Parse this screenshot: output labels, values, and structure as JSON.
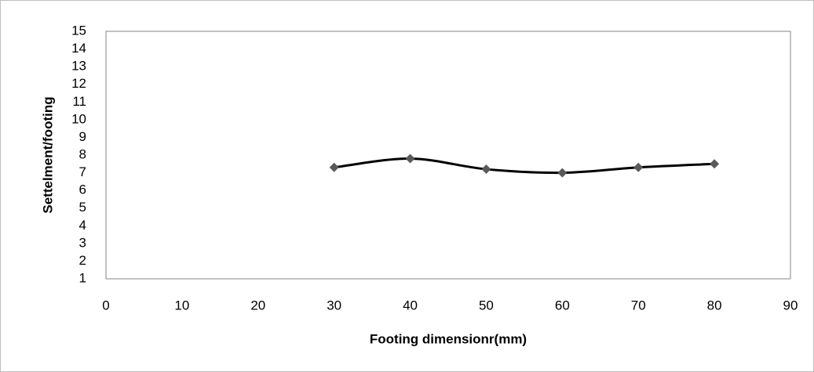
{
  "chart_data": {
    "type": "line",
    "x_label": "Footing dimensionr(mm)",
    "y_label": "Settelment/footing",
    "x": [
      30,
      40,
      50,
      60,
      70,
      80
    ],
    "series": [
      {
        "color": "#000000",
        "marker_color": "#595959",
        "values": [
          7.3,
          7.8,
          7.2,
          7.0,
          7.3,
          7.5
        ]
      }
    ],
    "xlim": [
      0,
      90
    ],
    "xticks": [
      0,
      10,
      20,
      30,
      40,
      50,
      60,
      70,
      80,
      90
    ],
    "ylim": [
      1,
      15
    ],
    "yticks": [
      1,
      2,
      3,
      4,
      5,
      6,
      7,
      8,
      9,
      10,
      11,
      12,
      13,
      14,
      15
    ],
    "smooth": true,
    "grid": false
  }
}
